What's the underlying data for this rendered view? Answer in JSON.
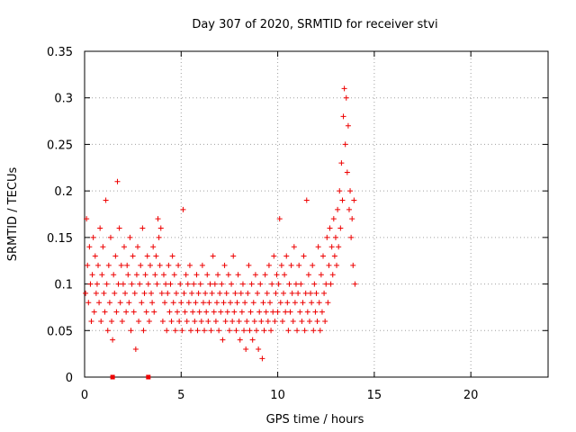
{
  "chart_data": {
    "type": "scatter",
    "title": "Day 307 of 2020, SRMTID for receiver stvi",
    "xlabel": "GPS time / hours",
    "ylabel": "SRMTID / TECUs",
    "xlim": [
      0,
      24
    ],
    "ylim": [
      0,
      0.35
    ],
    "x_ticks": [
      0,
      5,
      10,
      15,
      20
    ],
    "y_ticks": [
      0,
      0.05,
      0.1,
      0.15,
      0.2,
      0.25,
      0.3,
      0.35
    ],
    "x_tick_labels": [
      "0",
      "5",
      "10",
      "15",
      "20"
    ],
    "y_tick_labels": [
      "0",
      "0.05",
      "0.1",
      "0.15",
      "0.2",
      "0.25",
      "0.3",
      "0.35"
    ],
    "grid": true,
    "marker": "+",
    "color": "#ee0000",
    "points": [
      [
        0.05,
        0.09
      ],
      [
        0.1,
        0.17
      ],
      [
        0.15,
        0.12
      ],
      [
        0.2,
        0.08
      ],
      [
        0.25,
        0.14
      ],
      [
        0.3,
        0.1
      ],
      [
        0.35,
        0.06
      ],
      [
        0.4,
        0.11
      ],
      [
        0.45,
        0.15
      ],
      [
        0.5,
        0.07
      ],
      [
        0.55,
        0.13
      ],
      [
        0.6,
        0.09
      ],
      [
        0.65,
        0.1
      ],
      [
        0.7,
        0.12
      ],
      [
        0.75,
        0.08
      ],
      [
        0.8,
        0.16
      ],
      [
        0.85,
        0.06
      ],
      [
        0.9,
        0.11
      ],
      [
        0.95,
        0.14
      ],
      [
        1.0,
        0.09
      ],
      [
        1.05,
        0.07
      ],
      [
        1.1,
        0.19
      ],
      [
        1.15,
        0.1
      ],
      [
        1.2,
        0.05
      ],
      [
        1.25,
        0.12
      ],
      [
        1.3,
        0.08
      ],
      [
        1.35,
        0.15
      ],
      [
        1.4,
        0.06
      ],
      [
        1.45,
        0.04
      ],
      [
        1.5,
        0.11
      ],
      [
        1.55,
        0.09
      ],
      [
        1.6,
        0.13
      ],
      [
        1.65,
        0.07
      ],
      [
        1.7,
        0.21
      ],
      [
        1.75,
        0.1
      ],
      [
        1.8,
        0.16
      ],
      [
        1.85,
        0.08
      ],
      [
        1.9,
        0.12
      ],
      [
        1.95,
        0.06
      ],
      [
        2.0,
        0.1
      ],
      [
        2.05,
        0.14
      ],
      [
        2.1,
        0.09
      ],
      [
        2.15,
        0.07
      ],
      [
        2.2,
        0.12
      ],
      [
        2.25,
        0.11
      ],
      [
        2.3,
        0.08
      ],
      [
        2.35,
        0.15
      ],
      [
        2.4,
        0.05
      ],
      [
        2.45,
        0.1
      ],
      [
        2.5,
        0.13
      ],
      [
        2.55,
        0.07
      ],
      [
        2.6,
        0.09
      ],
      [
        2.65,
        0.03
      ],
      [
        2.7,
        0.11
      ],
      [
        2.75,
        0.14
      ],
      [
        2.8,
        0.06
      ],
      [
        2.85,
        0.1
      ],
      [
        2.9,
        0.12
      ],
      [
        2.95,
        0.08
      ],
      [
        3.0,
        0.16
      ],
      [
        3.05,
        0.05
      ],
      [
        3.1,
        0.09
      ],
      [
        3.15,
        0.11
      ],
      [
        3.2,
        0.07
      ],
      [
        3.25,
        0.13
      ],
      [
        3.3,
        0.1
      ],
      [
        3.35,
        0.06
      ],
      [
        3.4,
        0.12
      ],
      [
        3.45,
        0.09
      ],
      [
        3.5,
        0.08
      ],
      [
        3.55,
        0.14
      ],
      [
        3.6,
        0.07
      ],
      [
        3.65,
        0.11
      ],
      [
        3.7,
        0.13
      ],
      [
        3.75,
        0.1
      ],
      [
        3.8,
        0.17
      ],
      [
        3.85,
        0.15
      ],
      [
        3.9,
        0.12
      ],
      [
        3.95,
        0.16
      ],
      [
        4.0,
        0.09
      ],
      [
        4.05,
        0.06
      ],
      [
        4.1,
        0.11
      ],
      [
        4.15,
        0.08
      ],
      [
        4.2,
        0.1
      ],
      [
        4.25,
        0.05
      ],
      [
        4.3,
        0.09
      ],
      [
        4.35,
        0.12
      ],
      [
        4.4,
        0.07
      ],
      [
        4.45,
        0.1
      ],
      [
        4.5,
        0.06
      ],
      [
        4.55,
        0.13
      ],
      [
        4.6,
        0.08
      ],
      [
        4.65,
        0.11
      ],
      [
        4.7,
        0.05
      ],
      [
        4.75,
        0.09
      ],
      [
        4.8,
        0.07
      ],
      [
        4.85,
        0.12
      ],
      [
        4.9,
        0.06
      ],
      [
        4.95,
        0.1
      ],
      [
        5.0,
        0.08
      ],
      [
        5.05,
        0.05
      ],
      [
        5.1,
        0.18
      ],
      [
        5.15,
        0.09
      ],
      [
        5.2,
        0.07
      ],
      [
        5.25,
        0.11
      ],
      [
        5.3,
        0.06
      ],
      [
        5.35,
        0.1
      ],
      [
        5.4,
        0.08
      ],
      [
        5.45,
        0.12
      ],
      [
        5.5,
        0.05
      ],
      [
        5.55,
        0.09
      ],
      [
        5.6,
        0.07
      ],
      [
        5.65,
        0.1
      ],
      [
        5.7,
        0.06
      ],
      [
        5.75,
        0.08
      ],
      [
        5.8,
        0.11
      ],
      [
        5.85,
        0.05
      ],
      [
        5.9,
        0.09
      ],
      [
        5.95,
        0.07
      ],
      [
        6.0,
        0.1
      ],
      [
        6.05,
        0.06
      ],
      [
        6.1,
        0.12
      ],
      [
        6.15,
        0.08
      ],
      [
        6.2,
        0.05
      ],
      [
        6.25,
        0.09
      ],
      [
        6.3,
        0.07
      ],
      [
        6.35,
        0.11
      ],
      [
        6.4,
        0.06
      ],
      [
        6.45,
        0.08
      ],
      [
        6.5,
        0.1
      ],
      [
        6.55,
        0.05
      ],
      [
        6.6,
        0.09
      ],
      [
        6.65,
        0.13
      ],
      [
        6.7,
        0.07
      ],
      [
        6.75,
        0.1
      ],
      [
        6.8,
        0.06
      ],
      [
        6.85,
        0.08
      ],
      [
        6.9,
        0.11
      ],
      [
        6.95,
        0.05
      ],
      [
        7.0,
        0.09
      ],
      [
        7.05,
        0.07
      ],
      [
        7.1,
        0.1
      ],
      [
        7.15,
        0.04
      ],
      [
        7.2,
        0.08
      ],
      [
        7.25,
        0.12
      ],
      [
        7.3,
        0.06
      ],
      [
        7.35,
        0.09
      ],
      [
        7.4,
        0.07
      ],
      [
        7.45,
        0.11
      ],
      [
        7.5,
        0.05
      ],
      [
        7.55,
        0.08
      ],
      [
        7.6,
        0.1
      ],
      [
        7.65,
        0.06
      ],
      [
        7.7,
        0.13
      ],
      [
        7.75,
        0.07
      ],
      [
        7.8,
        0.09
      ],
      [
        7.85,
        0.05
      ],
      [
        7.9,
        0.08
      ],
      [
        7.95,
        0.11
      ],
      [
        8.0,
        0.06
      ],
      [
        8.05,
        0.04
      ],
      [
        8.1,
        0.09
      ],
      [
        8.15,
        0.07
      ],
      [
        8.2,
        0.1
      ],
      [
        8.25,
        0.05
      ],
      [
        8.3,
        0.08
      ],
      [
        8.35,
        0.03
      ],
      [
        8.4,
        0.06
      ],
      [
        8.45,
        0.09
      ],
      [
        8.5,
        0.12
      ],
      [
        8.55,
        0.05
      ],
      [
        8.6,
        0.07
      ],
      [
        8.65,
        0.1
      ],
      [
        8.7,
        0.04
      ],
      [
        8.75,
        0.08
      ],
      [
        8.8,
        0.06
      ],
      [
        8.85,
        0.11
      ],
      [
        8.9,
        0.05
      ],
      [
        8.95,
        0.09
      ],
      [
        9.0,
        0.03
      ],
      [
        9.05,
        0.07
      ],
      [
        9.1,
        0.1
      ],
      [
        9.15,
        0.06
      ],
      [
        9.2,
        0.02
      ],
      [
        9.25,
        0.08
      ],
      [
        9.3,
        0.05
      ],
      [
        9.35,
        0.11
      ],
      [
        9.4,
        0.07
      ],
      [
        9.45,
        0.09
      ],
      [
        9.5,
        0.06
      ],
      [
        9.55,
        0.12
      ],
      [
        9.6,
        0.08
      ],
      [
        9.65,
        0.05
      ],
      [
        9.7,
        0.1
      ],
      [
        9.75,
        0.07
      ],
      [
        9.8,
        0.13
      ],
      [
        9.85,
        0.06
      ],
      [
        9.9,
        0.09
      ],
      [
        9.95,
        0.11
      ],
      [
        10.0,
        0.07
      ],
      [
        10.05,
        0.1
      ],
      [
        10.1,
        0.17
      ],
      [
        10.15,
        0.08
      ],
      [
        10.2,
        0.12
      ],
      [
        10.25,
        0.06
      ],
      [
        10.3,
        0.09
      ],
      [
        10.35,
        0.11
      ],
      [
        10.4,
        0.07
      ],
      [
        10.45,
        0.13
      ],
      [
        10.5,
        0.08
      ],
      [
        10.55,
        0.05
      ],
      [
        10.6,
        0.1
      ],
      [
        10.65,
        0.07
      ],
      [
        10.7,
        0.12
      ],
      [
        10.75,
        0.09
      ],
      [
        10.8,
        0.06
      ],
      [
        10.85,
        0.14
      ],
      [
        10.9,
        0.08
      ],
      [
        10.95,
        0.1
      ],
      [
        11.0,
        0.05
      ],
      [
        11.05,
        0.09
      ],
      [
        11.1,
        0.12
      ],
      [
        11.15,
        0.07
      ],
      [
        11.2,
        0.1
      ],
      [
        11.25,
        0.06
      ],
      [
        11.3,
        0.08
      ],
      [
        11.35,
        0.13
      ],
      [
        11.4,
        0.05
      ],
      [
        11.45,
        0.09
      ],
      [
        11.5,
        0.19
      ],
      [
        11.55,
        0.07
      ],
      [
        11.6,
        0.11
      ],
      [
        11.65,
        0.06
      ],
      [
        11.7,
        0.09
      ],
      [
        11.75,
        0.08
      ],
      [
        11.8,
        0.12
      ],
      [
        11.85,
        0.05
      ],
      [
        11.9,
        0.1
      ],
      [
        11.95,
        0.07
      ],
      [
        12.0,
        0.09
      ],
      [
        12.05,
        0.06
      ],
      [
        12.1,
        0.14
      ],
      [
        12.15,
        0.08
      ],
      [
        12.2,
        0.05
      ],
      [
        12.25,
        0.11
      ],
      [
        12.3,
        0.07
      ],
      [
        12.35,
        0.13
      ],
      [
        12.4,
        0.09
      ],
      [
        12.45,
        0.06
      ],
      [
        12.5,
        0.1
      ],
      [
        12.55,
        0.15
      ],
      [
        12.6,
        0.08
      ],
      [
        12.65,
        0.12
      ],
      [
        12.7,
        0.16
      ],
      [
        12.75,
        0.1
      ],
      [
        12.8,
        0.14
      ],
      [
        12.85,
        0.11
      ],
      [
        12.9,
        0.17
      ],
      [
        12.95,
        0.13
      ],
      [
        13.0,
        0.15
      ],
      [
        13.05,
        0.12
      ],
      [
        13.1,
        0.18
      ],
      [
        13.15,
        0.14
      ],
      [
        13.2,
        0.2
      ],
      [
        13.25,
        0.16
      ],
      [
        13.3,
        0.23
      ],
      [
        13.35,
        0.19
      ],
      [
        13.4,
        0.28
      ],
      [
        13.45,
        0.31
      ],
      [
        13.5,
        0.25
      ],
      [
        13.55,
        0.3
      ],
      [
        13.6,
        0.22
      ],
      [
        13.65,
        0.27
      ],
      [
        13.7,
        0.18
      ],
      [
        13.75,
        0.2
      ],
      [
        13.8,
        0.15
      ],
      [
        13.85,
        0.17
      ],
      [
        13.9,
        0.12
      ],
      [
        13.95,
        0.19
      ],
      [
        14.0,
        0.1
      ]
    ],
    "outliers": [
      [
        1.45,
        0.0
      ],
      [
        3.3,
        0.0
      ]
    ]
  }
}
